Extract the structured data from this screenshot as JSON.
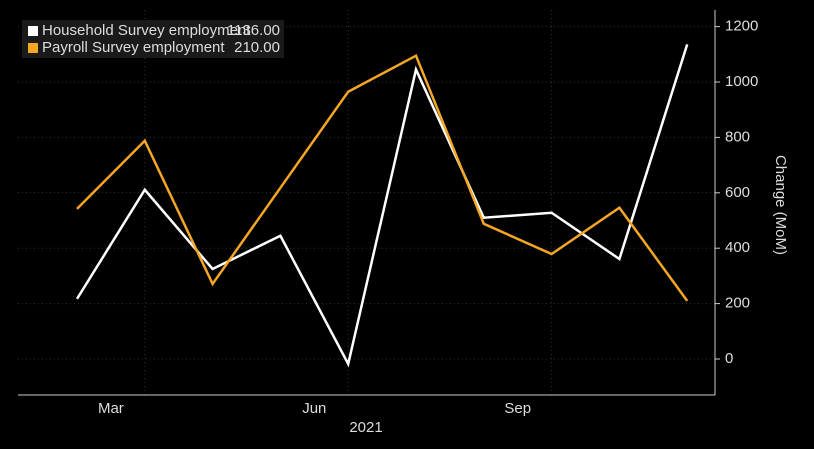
{
  "chart_data": {
    "type": "line",
    "categories": [
      null,
      "Mar",
      null,
      null,
      "Jun",
      null,
      null,
      "Sep",
      null,
      null
    ],
    "x_label": "2021",
    "y_label": "Change (MoM)",
    "series": [
      {
        "name": "Household Survey employment",
        "legend_value": "1136.00",
        "color": "#ffffff",
        "values": [
          217,
          611,
          325,
          445,
          -18,
          1045,
          510,
          528,
          361,
          1136
        ]
      },
      {
        "name": "Payroll Survey employment",
        "legend_value": "210.00",
        "color": "#f5a623",
        "values": [
          542,
          788,
          271,
          618,
          965,
          1095,
          488,
          379,
          546,
          210
        ]
      }
    ],
    "ylim": [
      -130,
      1260
    ],
    "yticks": [
      0,
      200,
      400,
      600,
      800,
      1000,
      1200
    ],
    "grid": true,
    "legend": "upper left"
  }
}
